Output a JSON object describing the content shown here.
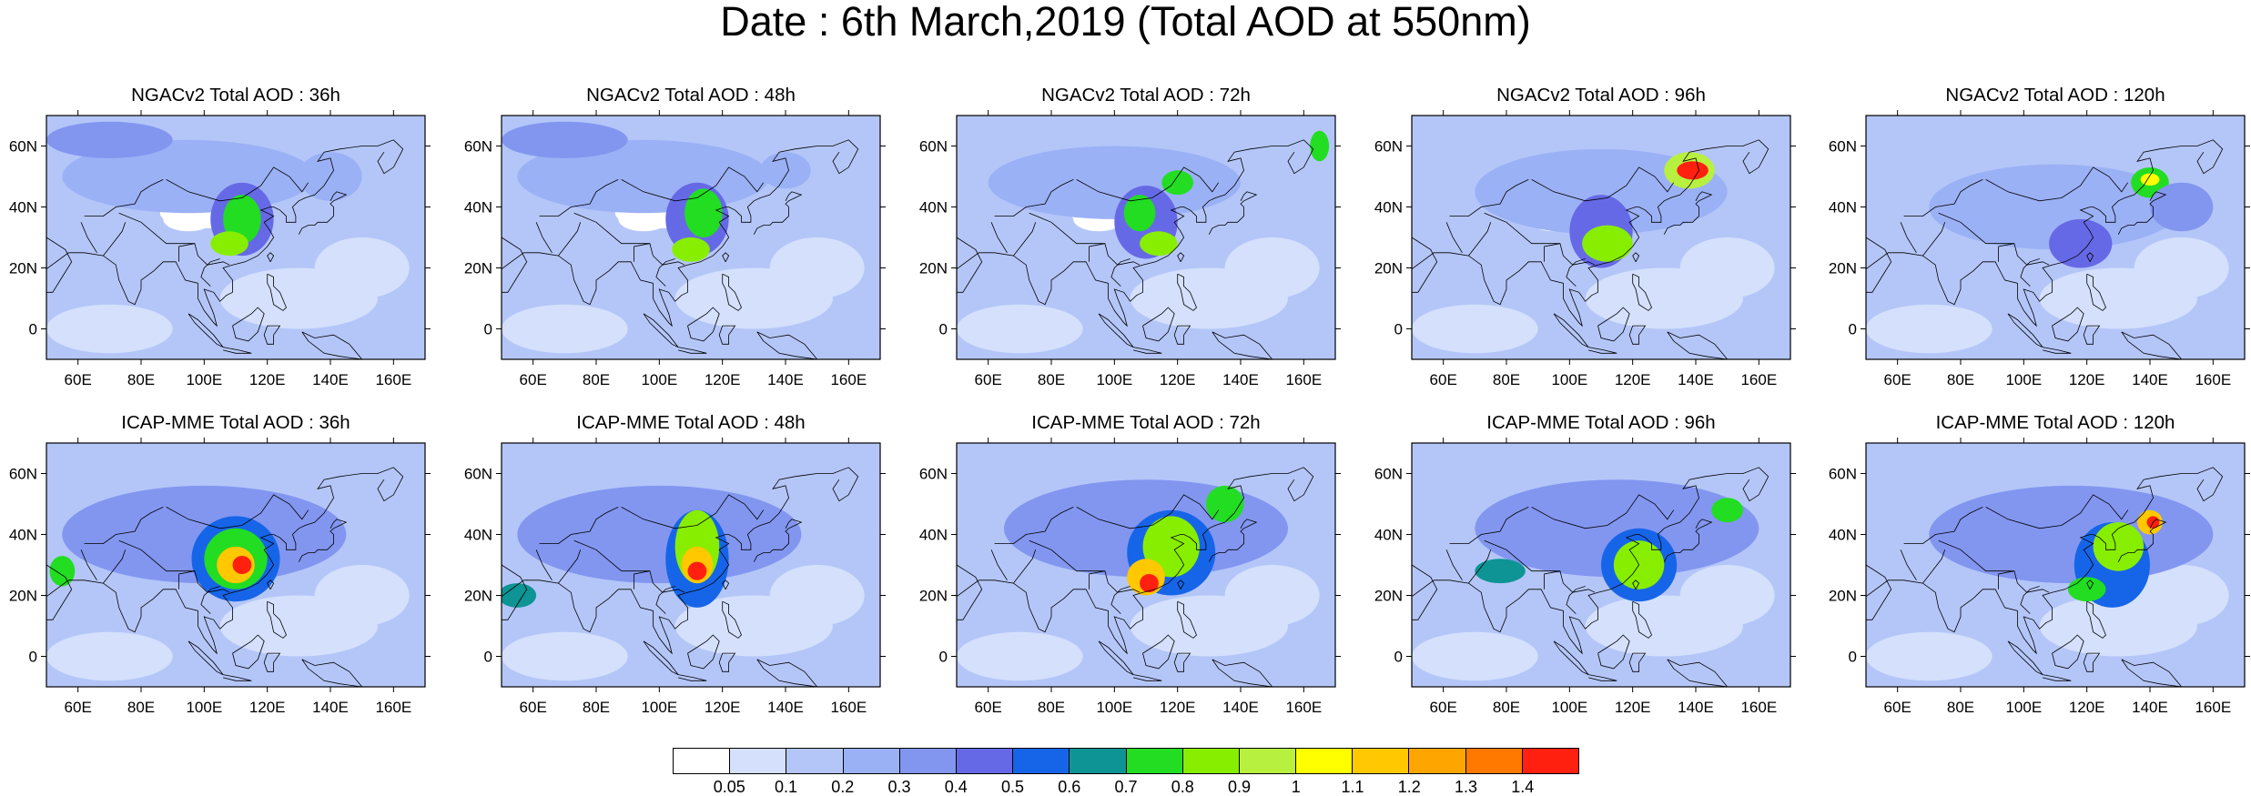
{
  "title": "Date : 6th March,2019 (Total AOD at 550nm)",
  "axes": {
    "lat_ticks": [
      "60N",
      "40N",
      "20N",
      "0"
    ],
    "lat_values": [
      60,
      40,
      20,
      0
    ],
    "lon_ticks": [
      "60E",
      "80E",
      "100E",
      "120E",
      "140E",
      "160E"
    ],
    "lon_values": [
      60,
      80,
      100,
      120,
      140,
      160
    ],
    "lon_range": [
      50,
      170
    ],
    "lat_range": [
      -10,
      70
    ]
  },
  "panels": [
    {
      "title": "NGACv2 Total AOD : 36h",
      "row": 0,
      "col": 0
    },
    {
      "title": "NGACv2 Total AOD : 48h",
      "row": 0,
      "col": 1
    },
    {
      "title": "NGACv2 Total AOD : 72h",
      "row": 0,
      "col": 2
    },
    {
      "title": "NGACv2 Total AOD : 96h",
      "row": 0,
      "col": 3
    },
    {
      "title": "NGACv2 Total AOD : 120h",
      "row": 0,
      "col": 4
    },
    {
      "title": "ICAP-MME Total AOD : 36h",
      "row": 1,
      "col": 0
    },
    {
      "title": "ICAP-MME Total AOD : 48h",
      "row": 1,
      "col": 1
    },
    {
      "title": "ICAP-MME Total AOD : 72h",
      "row": 1,
      "col": 2
    },
    {
      "title": "ICAP-MME Total AOD : 96h",
      "row": 1,
      "col": 3
    },
    {
      "title": "ICAP-MME Total AOD : 120h",
      "row": 1,
      "col": 4
    }
  ],
  "colorbar": {
    "labels": [
      "0.05",
      "0.1",
      "0.2",
      "0.3",
      "0.4",
      "0.5",
      "0.6",
      "0.7",
      "0.8",
      "0.9",
      "1",
      "1.1",
      "1.2",
      "1.3",
      "1.4"
    ],
    "colors": [
      "#ffffff",
      "#d4e0fc",
      "#b4c6f8",
      "#9bb1f5",
      "#8296f0",
      "#6669e6",
      "#1665e8",
      "#0e9494",
      "#22dd22",
      "#88ee00",
      "#b8f040",
      "#ffff00",
      "#ffc800",
      "#ffa500",
      "#ff7800",
      "#ff2010"
    ]
  }
}
